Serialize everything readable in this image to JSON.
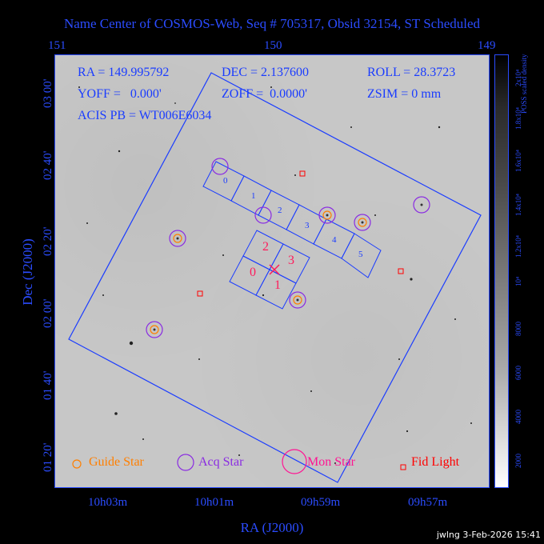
{
  "title": "Name Center of COSMOS-Web, Seq # 705317, Obsid 32154, ST Scheduled",
  "top_ticks": [
    "151",
    "150",
    "149"
  ],
  "bottom_ticks": [
    "10h03m",
    "10h01m",
    "09h59m",
    "09h57m"
  ],
  "x_axis_label": "RA (J2000)",
  "y_axis_label": "Dec (J2000)",
  "y_ticks": [
    "03 00'",
    "02 40'",
    "02 20'",
    "02 00'",
    "01 40'",
    "01 20'"
  ],
  "info": {
    "ra": "RA = 149.995792",
    "dec": "DEC = 2.137600",
    "roll": "ROLL = 28.3723",
    "yoff": "YOFF =   0.000'",
    "zoff": "ZOFF =  0.0000'",
    "zsim": "ZSIM = 0 mm",
    "acis": "ACIS PB = WT006E6034"
  },
  "chips_acis_s": [
    "0",
    "1",
    "2",
    "3",
    "4",
    "5"
  ],
  "chips_acis_i": [
    "2",
    "3",
    "0",
    "1"
  ],
  "colorbar": {
    "label": "POSS scaled density",
    "ticks": [
      "2x10⁴",
      "1.8x10⁴",
      "1.6x10⁴",
      "1.4x10⁴",
      "1.2x10⁴",
      "10⁴",
      "8000",
      "6000",
      "4000",
      "2000"
    ]
  },
  "legend": {
    "guide": "Guide Star",
    "acq": "Acq Star",
    "mon": "Mon Star",
    "fid": "Fid Light"
  },
  "colors": {
    "axis": "#2b4cff",
    "fov": "#1a3cff",
    "guide": "#ff7f00",
    "acq": "#8a2be2",
    "mon": "#ff1493",
    "fid": "#ff0000",
    "acis_i_labels": "#ff1a5a"
  },
  "footer": "jwlng  3-Feb-2026 15:41"
}
